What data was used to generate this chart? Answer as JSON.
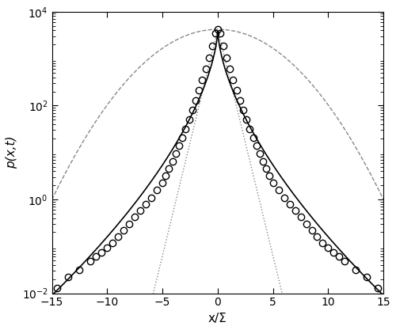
{
  "title": "",
  "xlabel": "x/Σ",
  "ylabel": "p(x,t)",
  "xlim": [
    -15,
    15
  ],
  "ylim_log": [
    -2,
    4
  ],
  "background_color": "#ffffff",
  "peak_val": 4200.0,
  "gaussian_sigma": 3.67,
  "laplace_b": 0.45,
  "levy_c": 0.227,
  "levy_beta": 0.613,
  "empirical_x": [
    -14.5,
    -13.5,
    -12.5,
    -11.5,
    -11.0,
    -10.5,
    -10.0,
    -9.5,
    -9.0,
    -8.5,
    -8.0,
    -7.5,
    -7.0,
    -6.5,
    -6.0,
    -5.5,
    -5.0,
    -4.7,
    -4.4,
    -4.1,
    -3.8,
    -3.5,
    -3.2,
    -2.9,
    -2.6,
    -2.3,
    -2.0,
    -1.7,
    -1.4,
    -1.1,
    -0.8,
    -0.5,
    -0.2,
    0.0,
    0.2,
    0.5,
    0.8,
    1.1,
    1.4,
    1.7,
    2.0,
    2.3,
    2.6,
    2.9,
    3.2,
    3.5,
    3.8,
    4.1,
    4.4,
    4.7,
    5.0,
    5.5,
    6.0,
    6.5,
    7.0,
    7.5,
    8.0,
    8.5,
    9.0,
    9.5,
    10.0,
    10.5,
    11.0,
    11.5,
    12.5,
    13.5,
    14.5
  ],
  "empirical_y": [
    0.013,
    0.022,
    0.032,
    0.048,
    0.06,
    0.075,
    0.095,
    0.12,
    0.16,
    0.22,
    0.3,
    0.42,
    0.58,
    0.8,
    1.1,
    1.6,
    2.3,
    3.2,
    4.5,
    6.5,
    9.5,
    14.0,
    21.0,
    32.0,
    50.0,
    80.0,
    130.0,
    210.0,
    350.0,
    600.0,
    1050.0,
    1900.0,
    3500.0,
    4200.0,
    3500.0,
    1900.0,
    1050.0,
    600.0,
    350.0,
    210.0,
    130.0,
    80.0,
    50.0,
    32.0,
    21.0,
    14.0,
    9.5,
    6.5,
    4.5,
    3.2,
    2.3,
    1.6,
    1.1,
    0.8,
    0.58,
    0.42,
    0.3,
    0.22,
    0.16,
    0.12,
    0.095,
    0.075,
    0.06,
    0.048,
    0.032,
    0.022,
    0.013
  ],
  "xticks": [
    -15,
    -10,
    -5,
    0,
    5,
    10,
    15
  ],
  "circle_size": 6,
  "circle_edgewidth": 1.0
}
